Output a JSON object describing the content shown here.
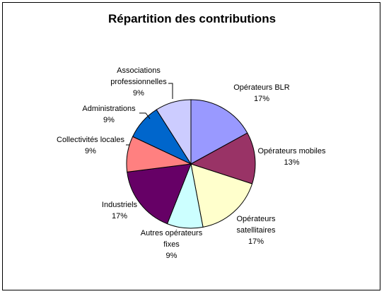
{
  "chart_data": {
    "type": "pie",
    "title": "Répartition des contributions",
    "slices": [
      {
        "label_lines": [
          "Opérateurs BLR"
        ],
        "pct_label": "17%",
        "value": 17,
        "color": "#9999ff"
      },
      {
        "label_lines": [
          "Opérateurs mobiles"
        ],
        "pct_label": "13%",
        "value": 13,
        "color": "#993366"
      },
      {
        "label_lines": [
          "Opérateurs",
          "satellitaires"
        ],
        "pct_label": "17%",
        "value": 17,
        "color": "#ffffcc"
      },
      {
        "label_lines": [
          "Autres opérateurs",
          "fixes"
        ],
        "pct_label": "9%",
        "value": 9,
        "color": "#ccffff"
      },
      {
        "label_lines": [
          "Industriels"
        ],
        "pct_label": "17%",
        "value": 17,
        "color": "#660066"
      },
      {
        "label_lines": [
          "Collectivités locales"
        ],
        "pct_label": "9%",
        "value": 9,
        "color": "#ff8080"
      },
      {
        "label_lines": [
          "Administrations"
        ],
        "pct_label": "9%",
        "value": 9,
        "color": "#0066cc"
      },
      {
        "label_lines": [
          "Associations",
          "professionnelles"
        ],
        "pct_label": "9%",
        "value": 9,
        "color": "#ccccff"
      }
    ]
  }
}
